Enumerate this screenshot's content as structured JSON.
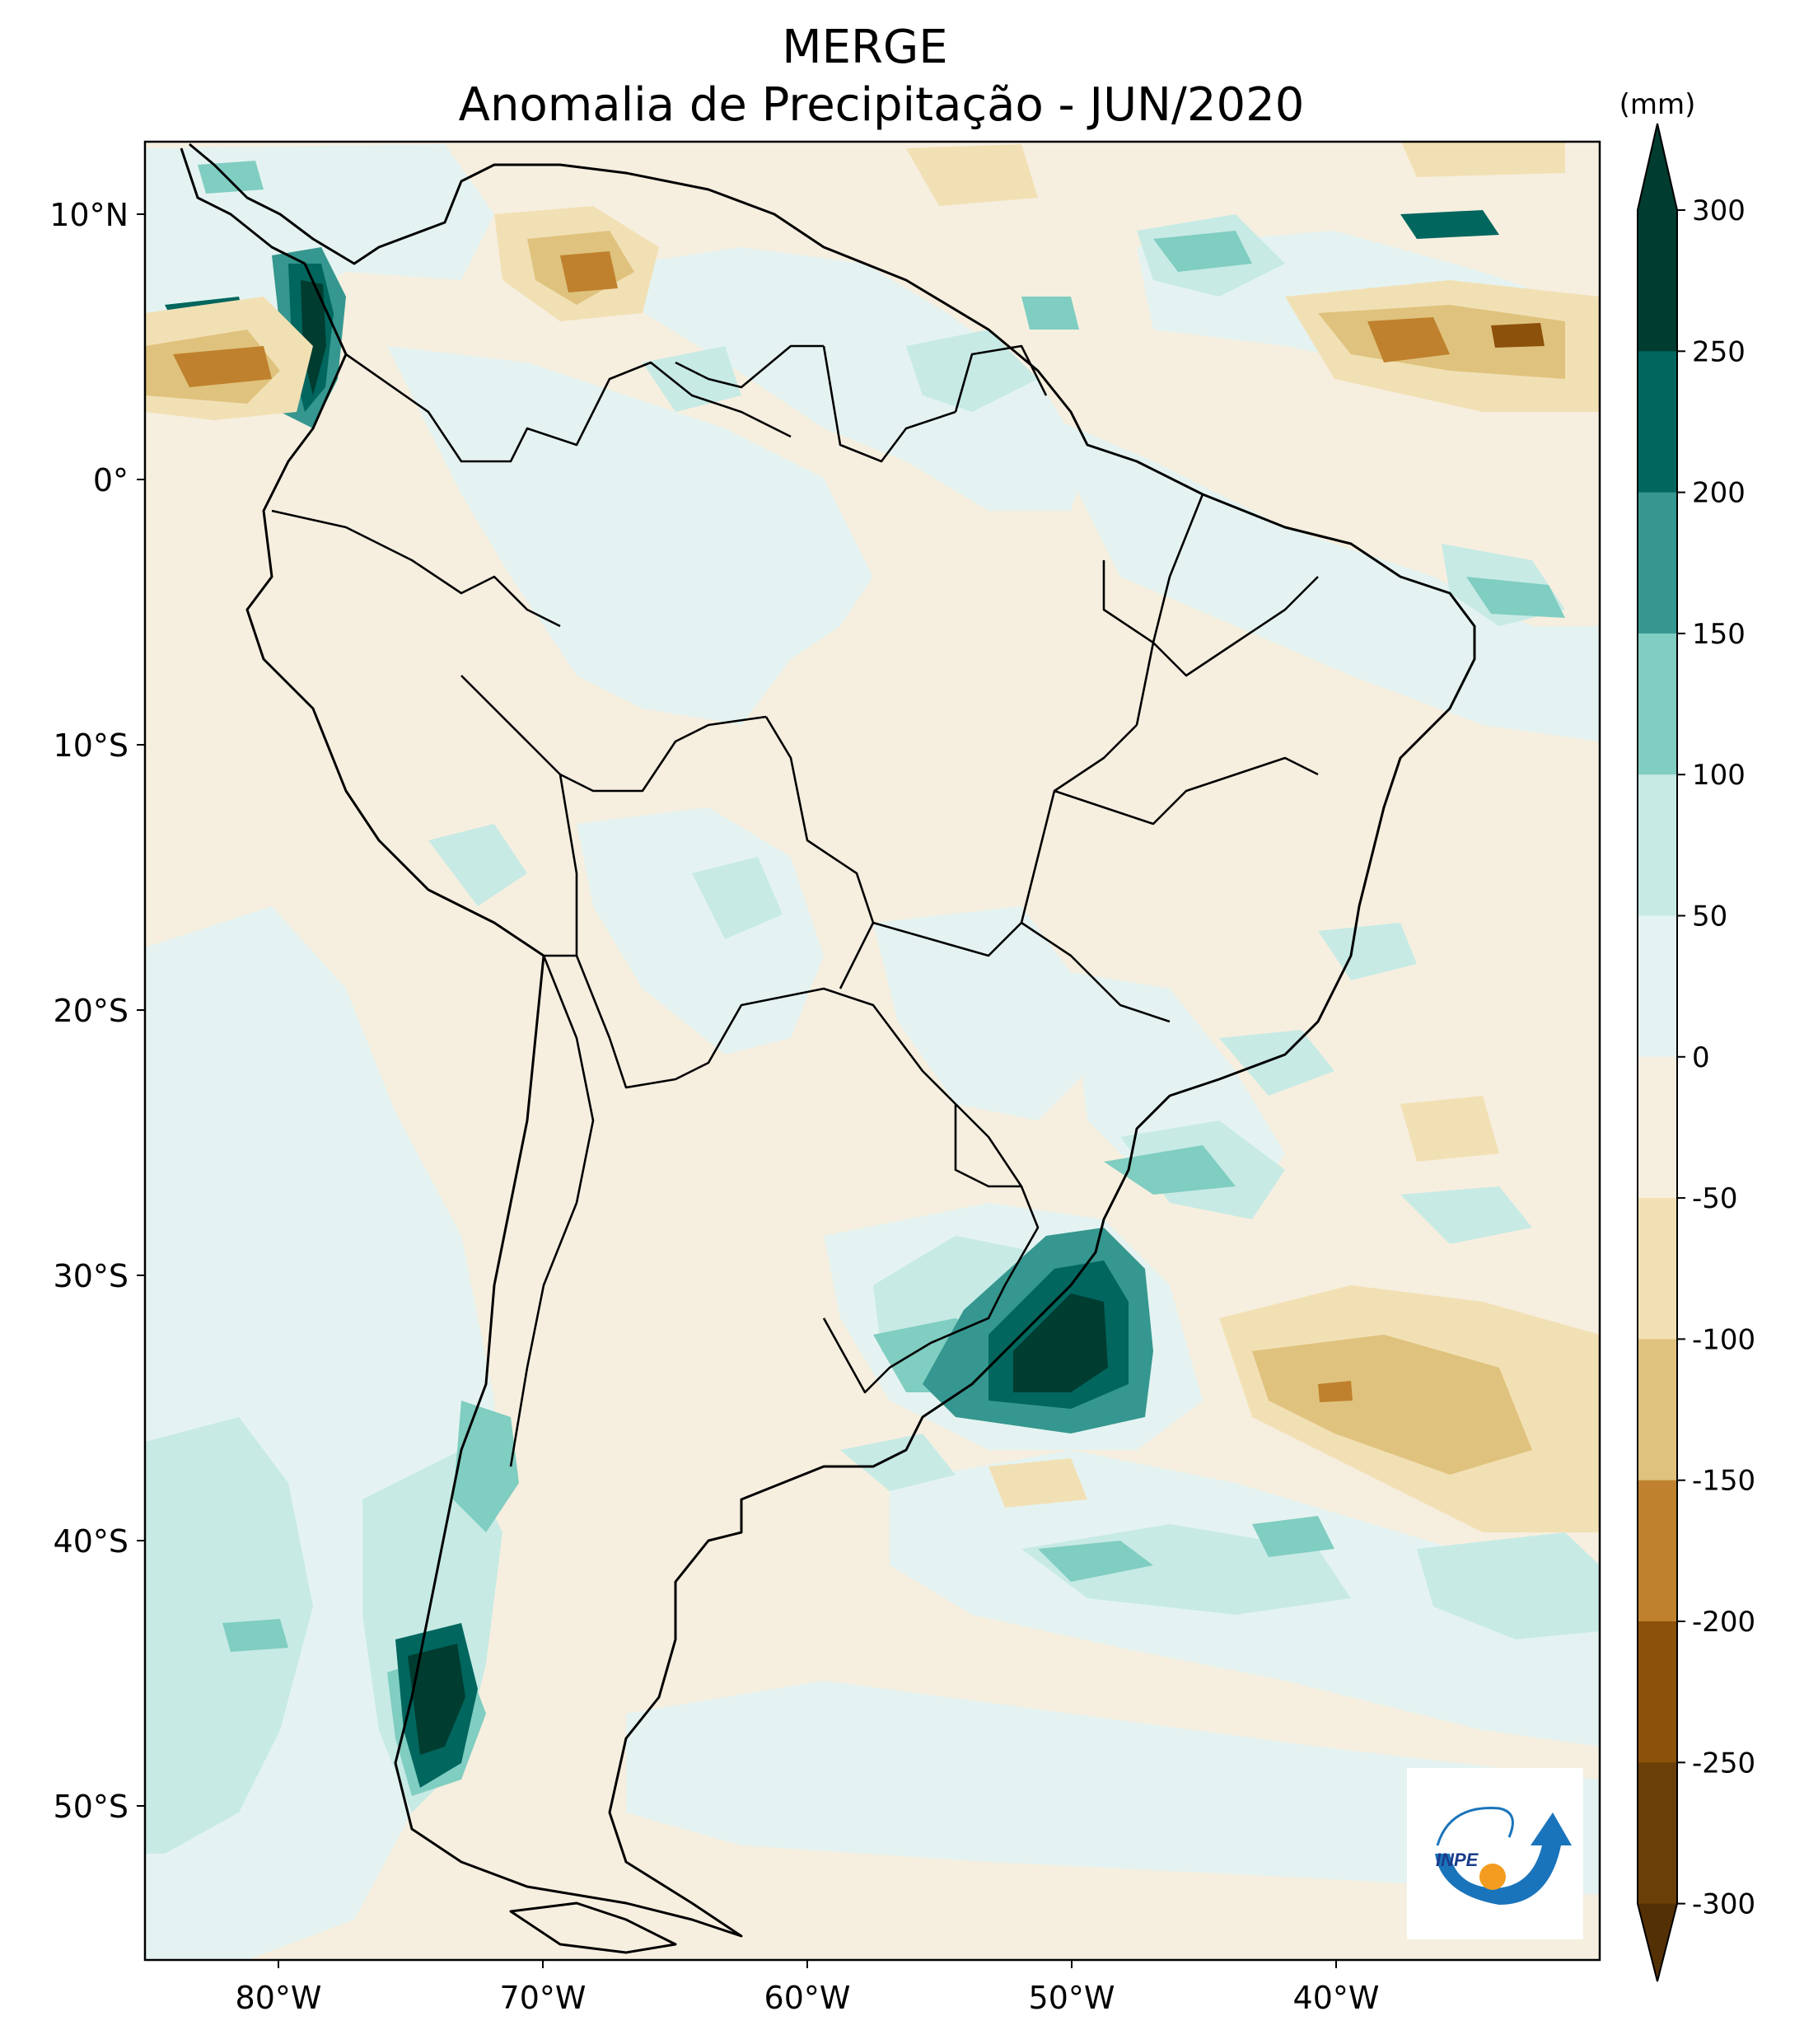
{
  "title": {
    "line1": "MERGE",
    "line2": "Anomalia de Precipitação - JUN/2020"
  },
  "colorbar": {
    "unit": "(mm)",
    "ticks": [
      "300",
      "250",
      "200",
      "150",
      "100",
      "50",
      "0",
      "-50",
      "-100",
      "-150",
      "-200",
      "-250",
      "-300"
    ],
    "colors": [
      "#003c30",
      "#01665e",
      "#35978f",
      "#80cdc1",
      "#c7eae5",
      "#e4f3f1",
      "#f6efdf",
      "#f2e0b5",
      "#dfc27d",
      "#bf812d",
      "#8c510a",
      "#6b3f08",
      "#543005"
    ]
  },
  "axes": {
    "lat_labels": [
      "10°N",
      "0°",
      "10°S",
      "20°S",
      "30°S",
      "40°S",
      "50°S"
    ],
    "lon_labels": [
      "80°W",
      "70°W",
      "60°W",
      "50°W",
      "40°W"
    ]
  },
  "logo": {
    "text": "INPE"
  }
}
